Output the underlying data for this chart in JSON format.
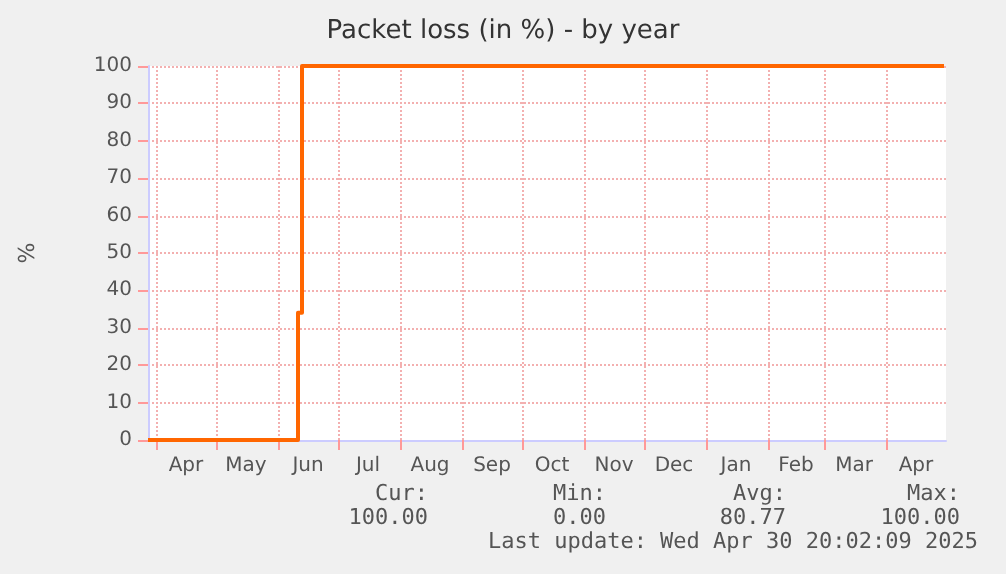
{
  "chart_data": {
    "type": "step",
    "title": "Packet loss (in %) - by year",
    "ylabel": "%",
    "x": [
      "2024-03-28",
      "2024-06-11",
      "2024-06-13",
      "2025-04-30"
    ],
    "series": [
      {
        "color": "#ff6600",
        "values": [
          0,
          34,
          100,
          100
        ]
      }
    ],
    "xlim": [
      "2024-03-28",
      "2025-05-01"
    ],
    "xticks": [
      {
        "value": "2024-04-01",
        "label": null
      },
      {
        "value": "2024-04-16",
        "label": "Apr"
      },
      {
        "value": "2024-05-01",
        "label": null
      },
      {
        "value": "2024-05-16",
        "label": "May"
      },
      {
        "value": "2024-06-01",
        "label": null
      },
      {
        "value": "2024-06-16",
        "label": "Jun"
      },
      {
        "value": "2024-07-01",
        "label": null
      },
      {
        "value": "2024-07-16",
        "label": "Jul"
      },
      {
        "value": "2024-08-01",
        "label": null
      },
      {
        "value": "2024-08-16",
        "label": "Aug"
      },
      {
        "value": "2024-09-01",
        "label": null
      },
      {
        "value": "2024-09-16",
        "label": "Sep"
      },
      {
        "value": "2024-10-01",
        "label": null
      },
      {
        "value": "2024-10-16",
        "label": "Oct"
      },
      {
        "value": "2024-11-01",
        "label": null
      },
      {
        "value": "2024-11-16",
        "label": "Nov"
      },
      {
        "value": "2024-12-01",
        "label": null
      },
      {
        "value": "2024-12-16",
        "label": "Dec"
      },
      {
        "value": "2025-01-01",
        "label": null
      },
      {
        "value": "2025-01-16",
        "label": "Jan"
      },
      {
        "value": "2025-02-01",
        "label": null
      },
      {
        "value": "2025-02-15",
        "label": "Feb"
      },
      {
        "value": "2025-03-01",
        "label": null
      },
      {
        "value": "2025-03-16",
        "label": "Mar"
      },
      {
        "value": "2025-04-01",
        "label": null
      },
      {
        "value": "2025-04-16",
        "label": "Apr"
      }
    ],
    "ylim": [
      0,
      100
    ],
    "yticks": [
      0,
      10,
      20,
      30,
      40,
      50,
      60,
      70,
      80,
      90,
      100
    ],
    "grid": true,
    "marker": "none",
    "line_style": "solid",
    "annotations": [
      "Cur:",
      "Min:",
      "Avg:",
      "Max:",
      "100.00",
      "0.00",
      "80.77",
      "100.00",
      "Last update: Wed Apr 30 20:02:09 2025"
    ]
  }
}
